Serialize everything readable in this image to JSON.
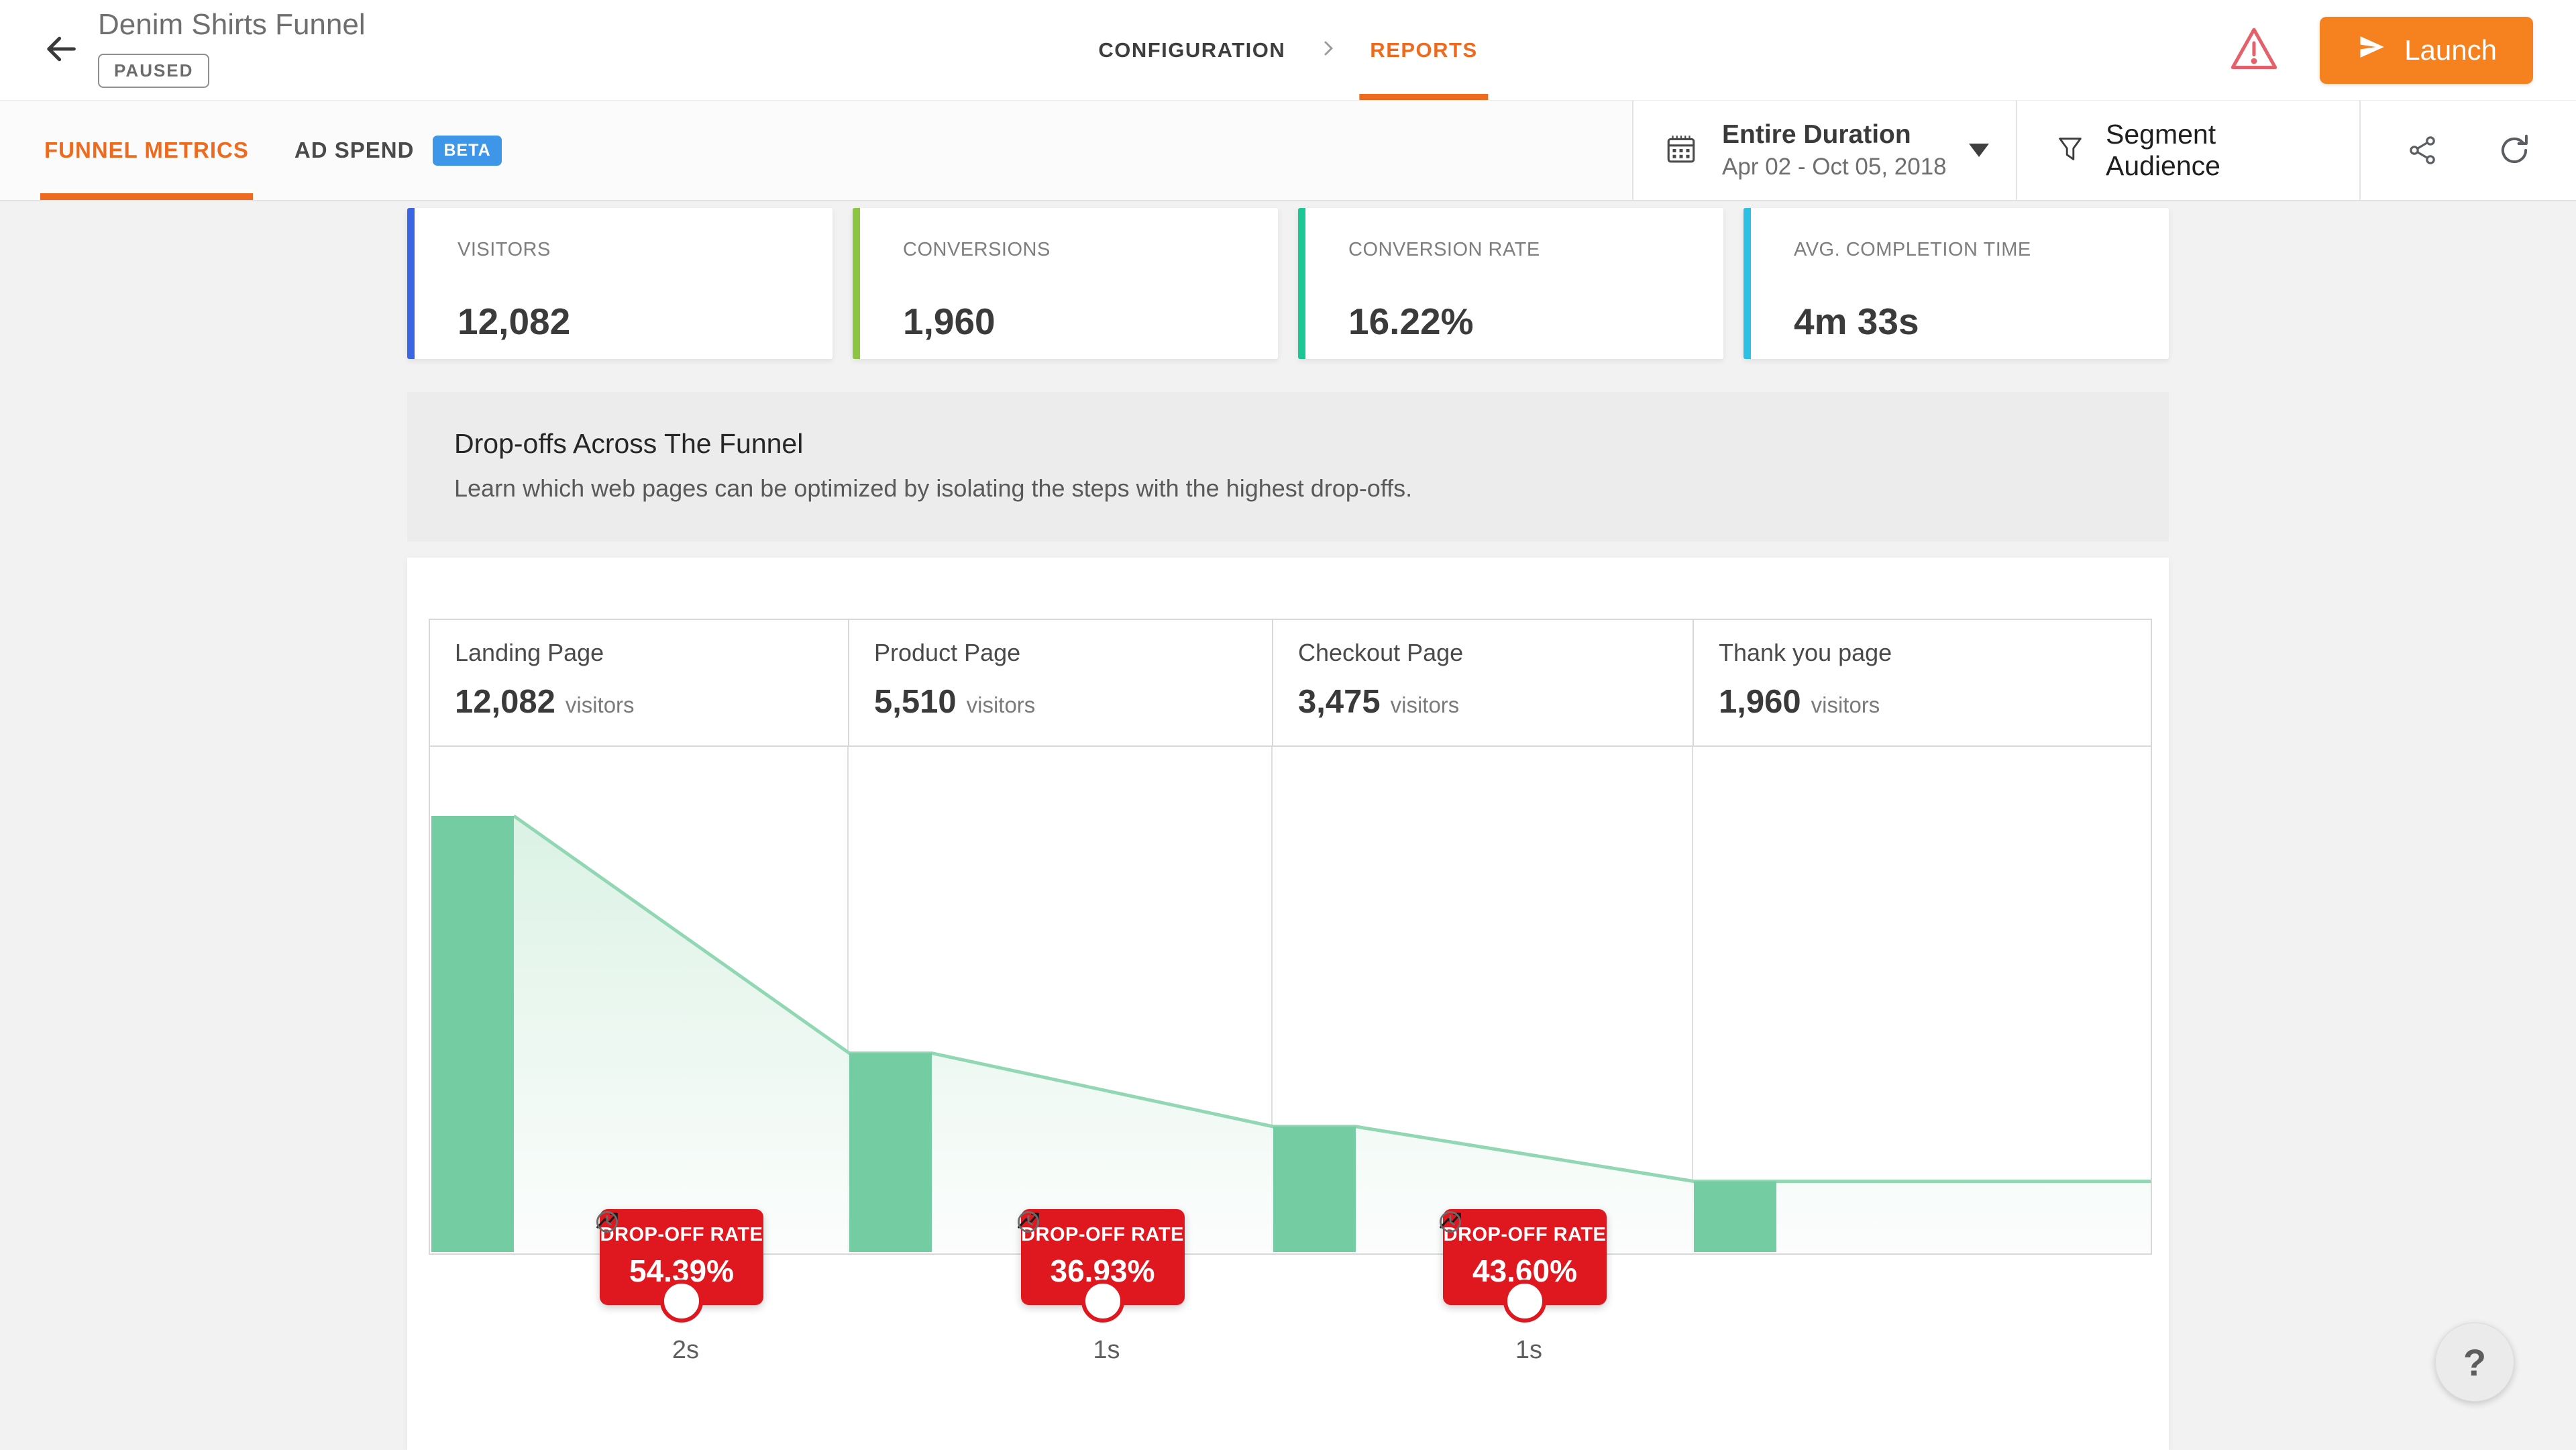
{
  "header": {
    "title": "Denim Shirts Funnel",
    "status_badge": "PAUSED",
    "nav": {
      "configuration": "CONFIGURATION",
      "reports": "REPORTS"
    },
    "launch_label": "Launch"
  },
  "toolbar": {
    "tabs": {
      "funnel_metrics": "FUNNEL METRICS",
      "ad_spend": "AD SPEND",
      "ad_spend_badge": "BETA"
    },
    "date_range": {
      "label": "Entire Duration",
      "dates": "Apr 02 - Oct 05, 2018"
    },
    "segment_label": "Segment Audience"
  },
  "metrics": [
    {
      "label": "VISITORS",
      "value": "12,082",
      "accent": "#3b66e3"
    },
    {
      "label": "CONVERSIONS",
      "value": "1,960",
      "accent": "#8cc640"
    },
    {
      "label": "CONVERSION RATE",
      "value": "16.22%",
      "accent": "#1bc795"
    },
    {
      "label": "AVG. COMPLETION TIME",
      "value": "4m 33s",
      "accent": "#2bc0e4"
    }
  ],
  "banner": {
    "title": "Drop-offs Across The Funnel",
    "subtitle": "Learn which web pages can be optimized by isolating the steps with the highest drop-offs."
  },
  "chart_data": {
    "type": "funnel",
    "title": "Drop-offs Across The Funnel",
    "stages": [
      {
        "name": "Landing Page",
        "visitors": 12082,
        "visitors_display": "12,082",
        "unit": "visitors"
      },
      {
        "name": "Product Page",
        "visitors": 5510,
        "visitors_display": "5,510",
        "unit": "visitors"
      },
      {
        "name": "Checkout Page",
        "visitors": 3475,
        "visitors_display": "3,475",
        "unit": "visitors"
      },
      {
        "name": "Thank you page",
        "visitors": 1960,
        "visitors_display": "1,960",
        "unit": "visitors"
      }
    ],
    "dropoffs": [
      {
        "label": "DROP-OFF RATE",
        "rate": "54.39%",
        "avg_time": "2s"
      },
      {
        "label": "DROP-OFF RATE",
        "rate": "36.93%",
        "avg_time": "1s"
      },
      {
        "label": "DROP-OFF RATE",
        "rate": "43.60%",
        "avg_time": "1s"
      }
    ],
    "colors": {
      "bar": "#73cca2",
      "line": "#92d7b3",
      "area_top": "#d9f1e3",
      "area_bottom": "#fbfdfc",
      "divider": "#dedede"
    }
  },
  "help": {
    "label": "?"
  },
  "brand": {
    "orange": "#ee6a1e",
    "launch_orange": "#f6821f",
    "dropoff_red": "#df1820",
    "beta_blue": "#3e96e8"
  },
  "icons": {
    "back": "arrow-left",
    "warning": "warning-triangle",
    "launch": "paper-plane",
    "calendar": "calendar",
    "dropdown": "caret-down",
    "filter": "funnel",
    "share": "share-nodes",
    "refresh": "rotate",
    "clock": "clock",
    "trend": "trending-up",
    "help": "question-mark"
  }
}
